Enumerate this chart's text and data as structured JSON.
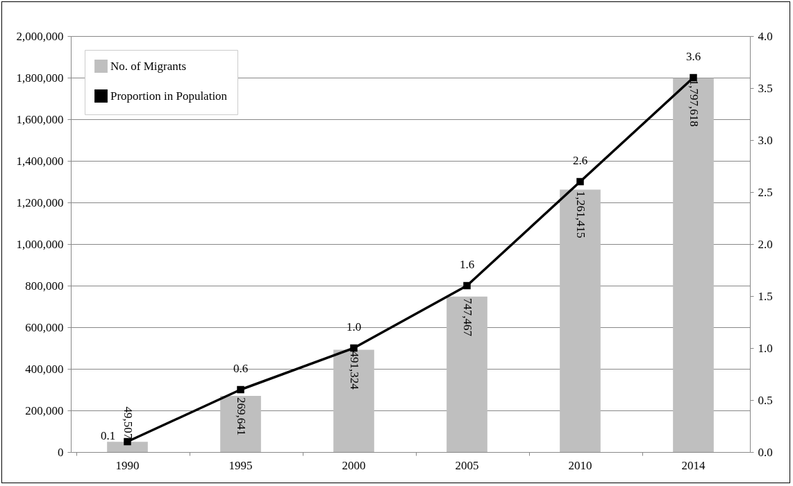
{
  "chart_data": {
    "type": "bar",
    "categories": [
      "1990",
      "1995",
      "2000",
      "2005",
      "2010",
      "2014"
    ],
    "series": [
      {
        "name": "No. of Migrants",
        "color": "#bfbfbf",
        "values": [
          49507,
          269641,
          491324,
          747467,
          1261415,
          1797618
        ],
        "value_labels": [
          "49,507",
          "269,641",
          "491,324",
          "747,467",
          "1,261,415",
          "1,797,618"
        ]
      },
      {
        "name": "Proportion in Population",
        "type": "line",
        "axis": "y2",
        "color": "#000000",
        "values": [
          0.1,
          0.6,
          1.0,
          1.6,
          2.6,
          3.6
        ],
        "value_labels": [
          "0.1",
          "0.6",
          "1.0",
          "1.6",
          "2.6",
          "3.6"
        ]
      }
    ],
    "ylim": [
      0,
      2000000
    ],
    "yticks": [
      0,
      {
        "value": 200000,
        "label": "200,000"
      },
      {
        "value": 400000,
        "label": "400,000"
      },
      {
        "value": 600000,
        "label": "600,000"
      },
      {
        "value": 800000,
        "label": "800,000"
      },
      {
        "value": 1000000,
        "label": "1,000,000"
      },
      {
        "value": 1200000,
        "label": "1,200,000"
      },
      {
        "value": 1400000,
        "label": "1,400,000"
      },
      {
        "value": 1600000,
        "label": "1,600,000"
      },
      {
        "value": 1800000,
        "label": "1,800,000"
      },
      {
        "value": 2000000,
        "label": "2,000,000"
      }
    ],
    "y2lim": [
      0,
      4
    ],
    "y2ticks": [
      {
        "value": 0,
        "label": "0.0"
      },
      0.5,
      {
        "value": 1,
        "label": "1.0"
      },
      1.5,
      {
        "value": 2,
        "label": "2.0"
      },
      2.5,
      {
        "value": 3,
        "label": "3.0"
      },
      3.5,
      {
        "value": 4,
        "label": "4.0"
      }
    ],
    "grid": "y",
    "legend": "top left",
    "marker": "square",
    "line_style": "solid"
  }
}
